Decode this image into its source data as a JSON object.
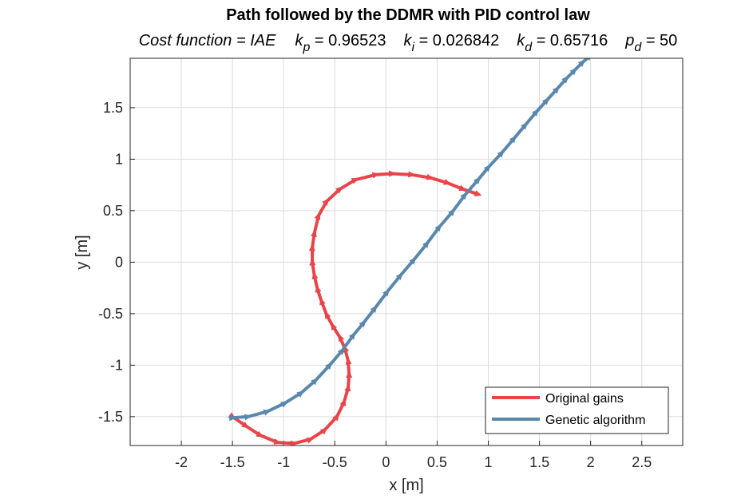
{
  "chart_data": {
    "type": "line",
    "title": "Path followed by the DDMR with PID control law",
    "subtitle_parts": {
      "cost": "Cost function = IAE",
      "kp_sym": "k",
      "kp_sub": "p",
      "kp_val": " = 0.96523",
      "ki_sym": "k",
      "ki_sub": "i",
      "ki_val": " = 0.026842",
      "kd_sym": "k",
      "kd_sub": "d",
      "kd_val": " = 0.65716",
      "pd_sym": "p",
      "pd_sub": "d",
      "pd_val": " = 50"
    },
    "xlabel": "x [m]",
    "ylabel": "y [m]",
    "xlim": [
      -2.5,
      2.9
    ],
    "ylim": [
      -1.78,
      1.98
    ],
    "xticks": [
      -2,
      -1.5,
      -1,
      -0.5,
      0,
      0.5,
      1,
      1.5,
      2,
      2.5
    ],
    "xtick_labels": [
      "-2",
      "-1.5",
      "-1",
      "-0.5",
      "0",
      "0.5",
      "1",
      "1.5",
      "2",
      "2.5"
    ],
    "yticks": [
      -1.5,
      -1,
      -0.5,
      0,
      0.5,
      1,
      1.5
    ],
    "ytick_labels": [
      "-1.5",
      "-1",
      "-0.5",
      "0",
      "0.5",
      "1",
      "1.5"
    ],
    "grid": true,
    "legend_position": "bottom-right",
    "series": [
      {
        "name": "Original gains",
        "color": "#e8444a",
        "marker": "triangle",
        "points": [
          [
            -1.5,
            -1.5
          ],
          [
            -1.37,
            -1.59
          ],
          [
            -1.23,
            -1.68
          ],
          [
            -1.06,
            -1.75
          ],
          [
            -0.9,
            -1.76
          ],
          [
            -0.74,
            -1.72
          ],
          [
            -0.6,
            -1.63
          ],
          [
            -0.48,
            -1.5
          ],
          [
            -0.41,
            -1.36
          ],
          [
            -0.37,
            -1.22
          ],
          [
            -0.36,
            -1.09
          ],
          [
            -0.37,
            -0.96
          ],
          [
            -0.4,
            -0.84
          ],
          [
            -0.45,
            -0.73
          ],
          [
            -0.52,
            -0.62
          ],
          [
            -0.58,
            -0.51
          ],
          [
            -0.63,
            -0.38
          ],
          [
            -0.67,
            -0.26
          ],
          [
            -0.7,
            -0.13
          ],
          [
            -0.72,
            0.0
          ],
          [
            -0.72,
            0.14
          ],
          [
            -0.7,
            0.28
          ],
          [
            -0.66,
            0.45
          ],
          [
            -0.58,
            0.59
          ],
          [
            -0.45,
            0.71
          ],
          [
            -0.3,
            0.8
          ],
          [
            -0.1,
            0.85
          ],
          [
            0.06,
            0.86
          ],
          [
            0.25,
            0.85
          ],
          [
            0.43,
            0.82
          ],
          [
            0.6,
            0.77
          ],
          [
            0.75,
            0.71
          ],
          [
            0.9,
            0.66
          ]
        ]
      },
      {
        "name": "Genetic algorithm",
        "color": "#5a88ad",
        "marker": "triangle",
        "points": [
          [
            -1.5,
            -1.51
          ],
          [
            -1.35,
            -1.5
          ],
          [
            -1.16,
            -1.45
          ],
          [
            -0.99,
            -1.37
          ],
          [
            -0.83,
            -1.27
          ],
          [
            -0.69,
            -1.15
          ],
          [
            -0.55,
            -1.0
          ],
          [
            -0.43,
            -0.86
          ],
          [
            -0.32,
            -0.71
          ],
          [
            -0.22,
            -0.59
          ],
          [
            -0.11,
            -0.45
          ],
          [
            0.01,
            -0.29
          ],
          [
            0.14,
            -0.13
          ],
          [
            0.27,
            0.02
          ],
          [
            0.4,
            0.18
          ],
          [
            0.52,
            0.34
          ],
          [
            0.65,
            0.49
          ],
          [
            0.77,
            0.65
          ],
          [
            0.9,
            0.8
          ],
          [
            1.0,
            0.92
          ],
          [
            1.13,
            1.06
          ],
          [
            1.25,
            1.2
          ],
          [
            1.36,
            1.33
          ],
          [
            1.47,
            1.46
          ],
          [
            1.57,
            1.57
          ],
          [
            1.67,
            1.68
          ],
          [
            1.76,
            1.78
          ],
          [
            1.84,
            1.86
          ],
          [
            1.92,
            1.94
          ],
          [
            1.99,
            2.0
          ]
        ]
      }
    ]
  }
}
